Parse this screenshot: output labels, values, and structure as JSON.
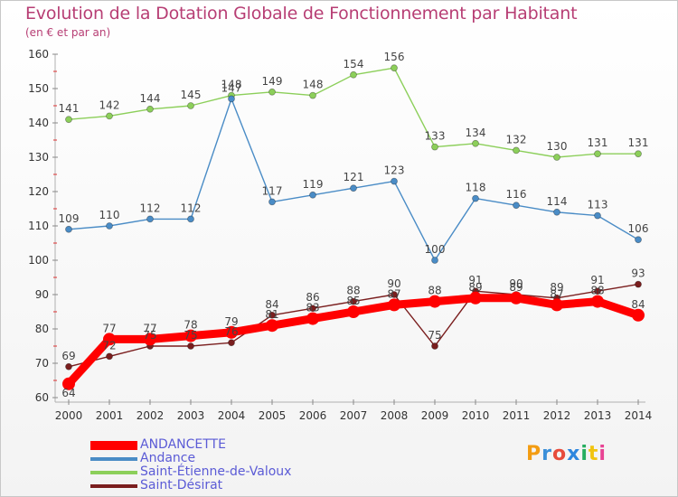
{
  "chart_data": {
    "type": "line",
    "title": "Evolution de la Dotation Globale de Fonctionnement par Habitant",
    "subtitle": "(en € et par an)",
    "x": [
      "2000",
      "2001",
      "2002",
      "2003",
      "2004",
      "2005",
      "2006",
      "2007",
      "2008",
      "2009",
      "2010",
      "2011",
      "2012",
      "2013",
      "2014"
    ],
    "ylim": [
      60,
      160
    ],
    "yticks": [
      60,
      70,
      80,
      90,
      100,
      110,
      120,
      130,
      140,
      150,
      160
    ],
    "grid": false,
    "legend_position": "bottom-left",
    "series": [
      {
        "name": "ANDANCETTE",
        "color": "#ff0000",
        "values": [
          64,
          77,
          77,
          78,
          79,
          81,
          83,
          85,
          87,
          88,
          89,
          89,
          87,
          88,
          84
        ]
      },
      {
        "name": "Andance",
        "color": "#4a8cc6",
        "values": [
          109,
          110,
          112,
          112,
          147,
          117,
          119,
          121,
          123,
          100,
          118,
          116,
          114,
          113,
          106
        ]
      },
      {
        "name": "Saint-Étienne-de-Valoux",
        "color": "#8ccf5a",
        "values": [
          141,
          142,
          144,
          145,
          148,
          149,
          148,
          154,
          156,
          133,
          134,
          132,
          130,
          131,
          131
        ]
      },
      {
        "name": "Saint-Désirat",
        "color": "#7a1e1e",
        "values": [
          69,
          72,
          75,
          75,
          76,
          84,
          86,
          88,
          90,
          75,
          91,
          90,
          89,
          91,
          93
        ]
      }
    ]
  },
  "branding": {
    "text": "Proxiti",
    "letters": [
      "P",
      "r",
      "o",
      "x",
      "i",
      "t",
      "i"
    ],
    "letter_colors": [
      "#f39c12",
      "#3b8fd9",
      "#e74c3c",
      "#2e86de",
      "#27ae60",
      "#f1c40f",
      "#e84393"
    ]
  }
}
